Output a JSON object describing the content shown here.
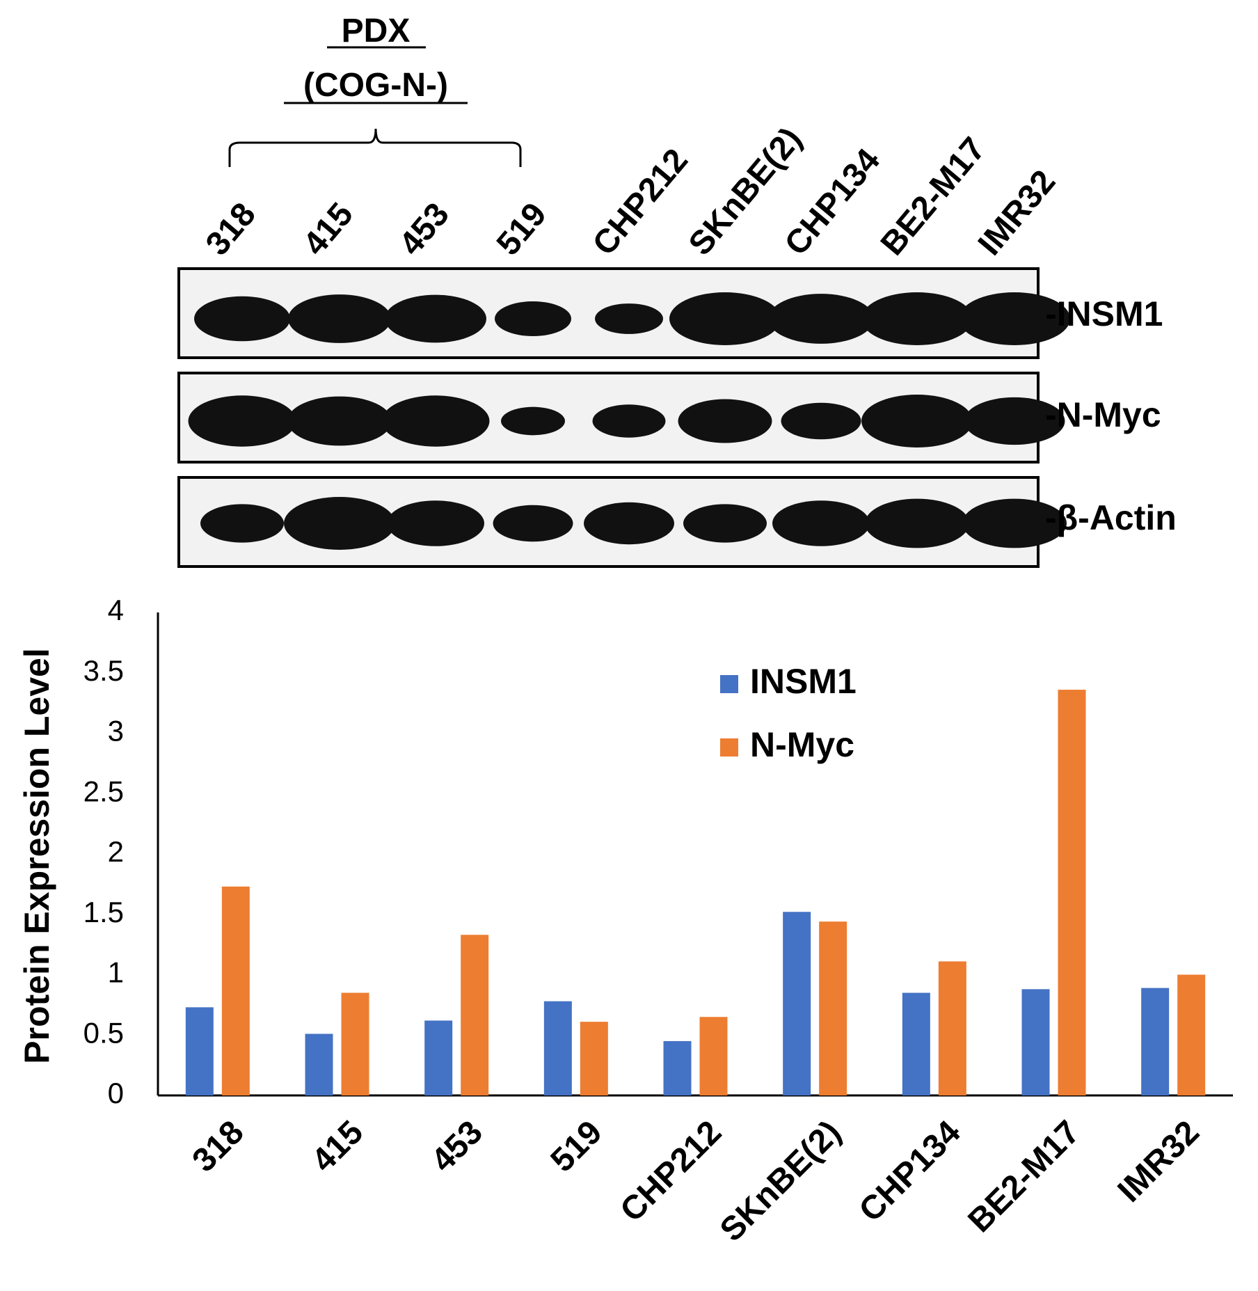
{
  "blot": {
    "group_title": [
      "PDX",
      "(COG-N-)"
    ],
    "lanes": [
      "318",
      "415",
      "453",
      "519",
      "CHP212",
      "SKnBE(2)",
      "CHP134",
      "BE2-M17",
      "IMR32"
    ],
    "panels": [
      {
        "label": "-INSM1",
        "bands": [
          0.78,
          0.88,
          0.86,
          0.5,
          0.38,
          1.0,
          0.92,
          1.0,
          1.0
        ]
      },
      {
        "label": "-N-Myc",
        "bands": [
          0.95,
          0.9,
          0.95,
          0.32,
          0.45,
          0.75,
          0.55,
          1.0,
          0.85
        ]
      },
      {
        "label": "-β-Actin",
        "bands": [
          0.6,
          1.0,
          0.8,
          0.55,
          0.7,
          0.6,
          0.8,
          0.9,
          0.9
        ]
      }
    ]
  },
  "chart_data": {
    "type": "bar",
    "categories": [
      "318",
      "415",
      "453",
      "519",
      "CHP212",
      "SKnBE(2)",
      "CHP134",
      "BE2-M17",
      "IMR32"
    ],
    "series": [
      {
        "name": "INSM1",
        "color": "#4472C4",
        "values": [
          0.73,
          0.51,
          0.62,
          0.78,
          0.45,
          1.52,
          0.85,
          0.88,
          0.89
        ]
      },
      {
        "name": "N-Myc",
        "color": "#ED7D31",
        "values": [
          1.73,
          0.85,
          1.33,
          0.61,
          0.65,
          1.44,
          1.11,
          3.36,
          1.0
        ]
      }
    ],
    "ylabel": "Protein Expression Level",
    "yticks": [
      "0",
      "0.5",
      "1",
      "1.5",
      "2",
      "2.5",
      "3",
      "3.5",
      "4"
    ],
    "ylim": [
      0,
      4
    ],
    "grid": false,
    "legend": "top-right"
  }
}
